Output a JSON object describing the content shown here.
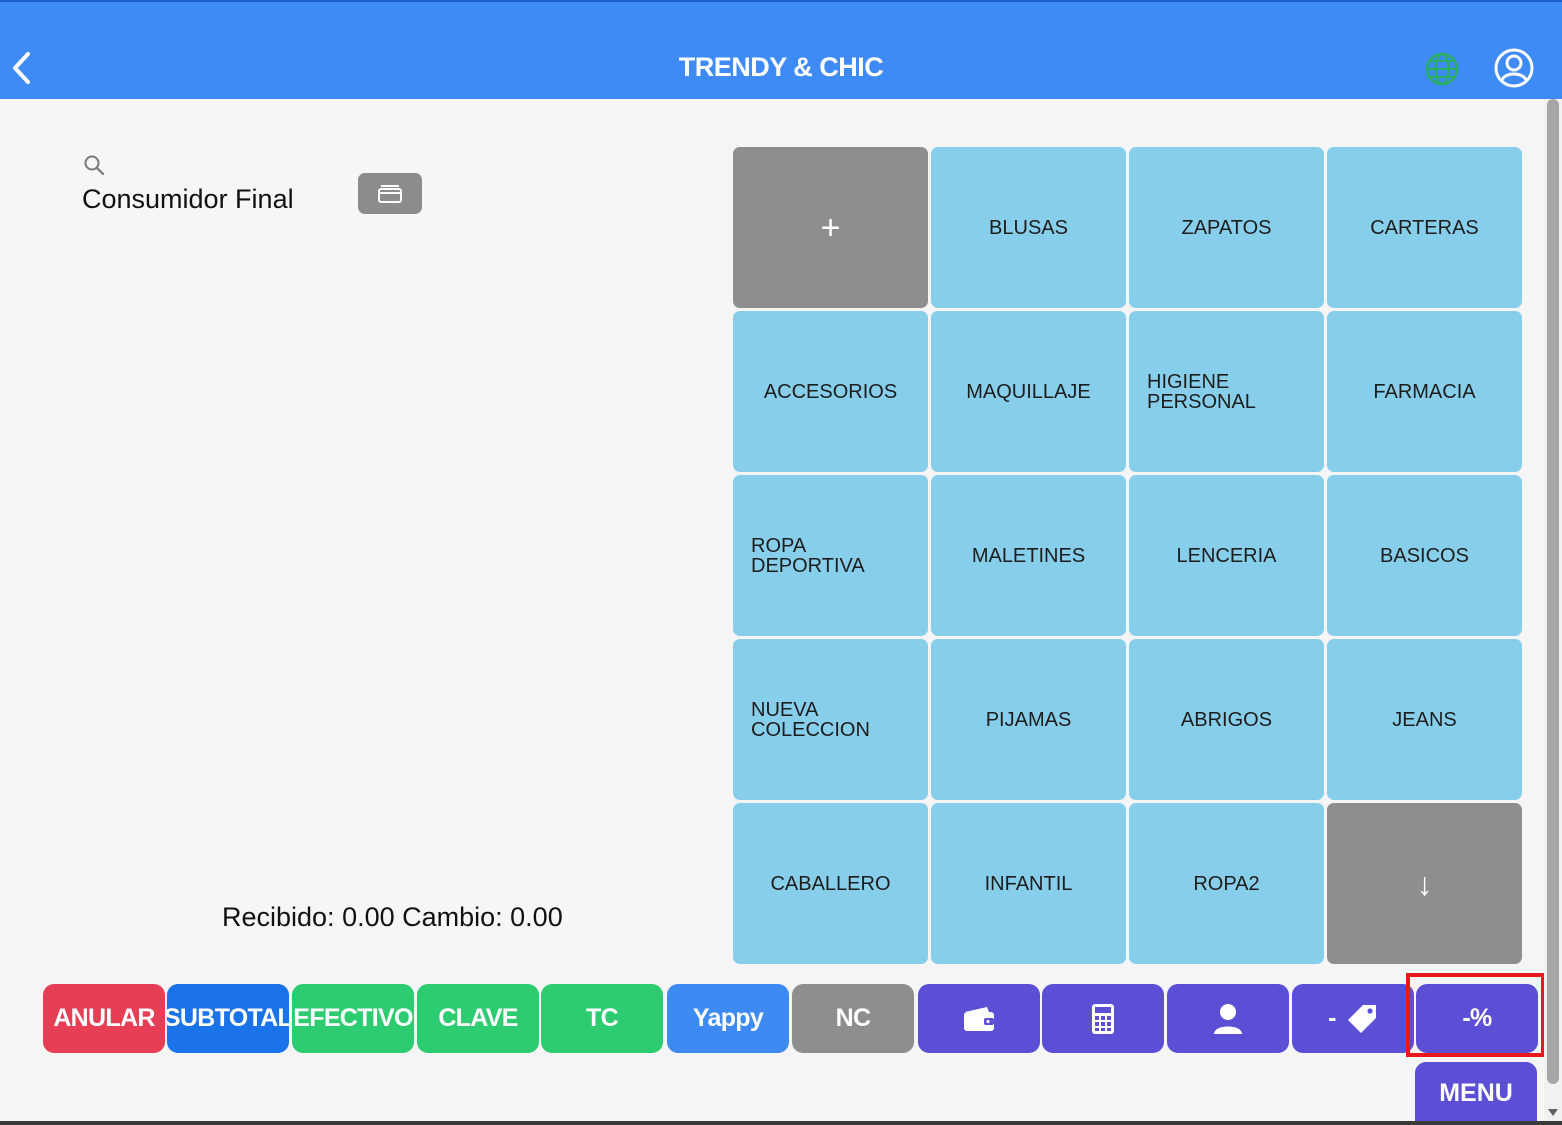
{
  "header": {
    "title": "TRENDY & CHIC"
  },
  "customer": {
    "name": "Consumidor Final"
  },
  "totals": {
    "text": "Recibido: 0.00 Cambio: 0.00"
  },
  "grid": {
    "tiles": [
      {
        "label": "+",
        "style": "gray",
        "name": "add-category-button"
      },
      {
        "label": "BLUSAS",
        "style": "blue",
        "name": "category-blusas"
      },
      {
        "label": "ZAPATOS",
        "style": "blue",
        "name": "category-zapatos"
      },
      {
        "label": "CARTERAS",
        "style": "blue",
        "name": "category-carteras"
      },
      {
        "label": "ACCESORIOS",
        "style": "blue",
        "name": "category-accesorios"
      },
      {
        "label": "MAQUILLAJE",
        "style": "blue",
        "name": "category-maquillaje"
      },
      {
        "label": "HIGIENE PERSONAL",
        "style": "blue",
        "name": "category-higiene-personal",
        "align": "left"
      },
      {
        "label": "FARMACIA",
        "style": "blue",
        "name": "category-farmacia"
      },
      {
        "label": "ROPA DEPORTIVA",
        "style": "blue",
        "name": "category-ropa-deportiva",
        "align": "left"
      },
      {
        "label": "MALETINES",
        "style": "blue",
        "name": "category-maletines"
      },
      {
        "label": "LENCERIA",
        "style": "blue",
        "name": "category-lenceria"
      },
      {
        "label": "BASICOS",
        "style": "blue",
        "name": "category-basicos"
      },
      {
        "label": "NUEVA COLECCION",
        "style": "blue",
        "name": "category-nueva-coleccion",
        "align": "left"
      },
      {
        "label": "PIJAMAS",
        "style": "blue",
        "name": "category-pijamas"
      },
      {
        "label": "ABRIGOS",
        "style": "blue",
        "name": "category-abrigos"
      },
      {
        "label": "JEANS",
        "style": "blue",
        "name": "category-jeans"
      },
      {
        "label": "CABALLERO",
        "style": "blue",
        "name": "category-caballero"
      },
      {
        "label": "INFANTIL",
        "style": "blue",
        "name": "category-infantil"
      },
      {
        "label": "ROPA2",
        "style": "blue",
        "name": "category-ropa2"
      },
      {
        "label": "↓",
        "style": "gray",
        "name": "next-page-button"
      }
    ]
  },
  "actions": {
    "anular": "ANULAR",
    "subtotal": "SUBTOTAL",
    "efectivo": "EFECTIVO",
    "clave": "CLAVE",
    "tc": "TC",
    "yappy": "Yappy",
    "nc": "NC",
    "discount_amount_minus": "-",
    "discount_percent": "-%",
    "menu": "MENU"
  },
  "icons": {
    "back": "chevron-left-icon",
    "globe": "globe-icon",
    "user": "user-circle-icon",
    "search": "search-icon",
    "drawer": "cash-drawer-icon",
    "wallet": "wallet-icon",
    "calculator": "calculator-icon",
    "person": "person-icon",
    "tag": "tag-icon",
    "arrow_down": "arrow-down-icon"
  },
  "colors": {
    "header": "#3f8bf5",
    "tile": "#87ceeb",
    "tile_gray": "#8e8e8e",
    "anular": "#e63e55",
    "subtotal": "#1a73e8",
    "green": "#2ecc71",
    "yappy": "#3d8bf2",
    "purple": "#5b4fd6",
    "highlight": "#e8191b",
    "globe": "#27ae60"
  }
}
